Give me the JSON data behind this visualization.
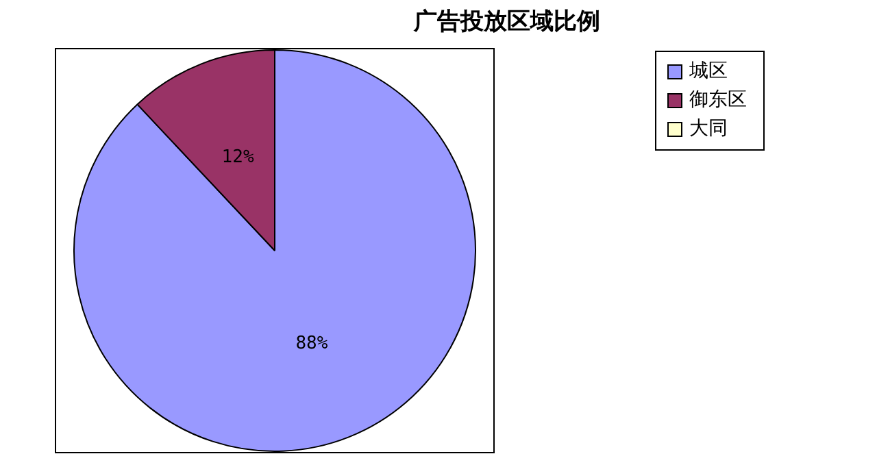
{
  "chart_data": {
    "type": "pie",
    "title": "广告投放区域比例",
    "categories": [
      "城区",
      "御东区",
      "大同"
    ],
    "values": [
      88,
      12,
      0
    ],
    "colors": [
      "#9999ff",
      "#993366",
      "#ffffcc"
    ],
    "value_labels": [
      "88%",
      "12%",
      null
    ],
    "legend": "top right"
  }
}
